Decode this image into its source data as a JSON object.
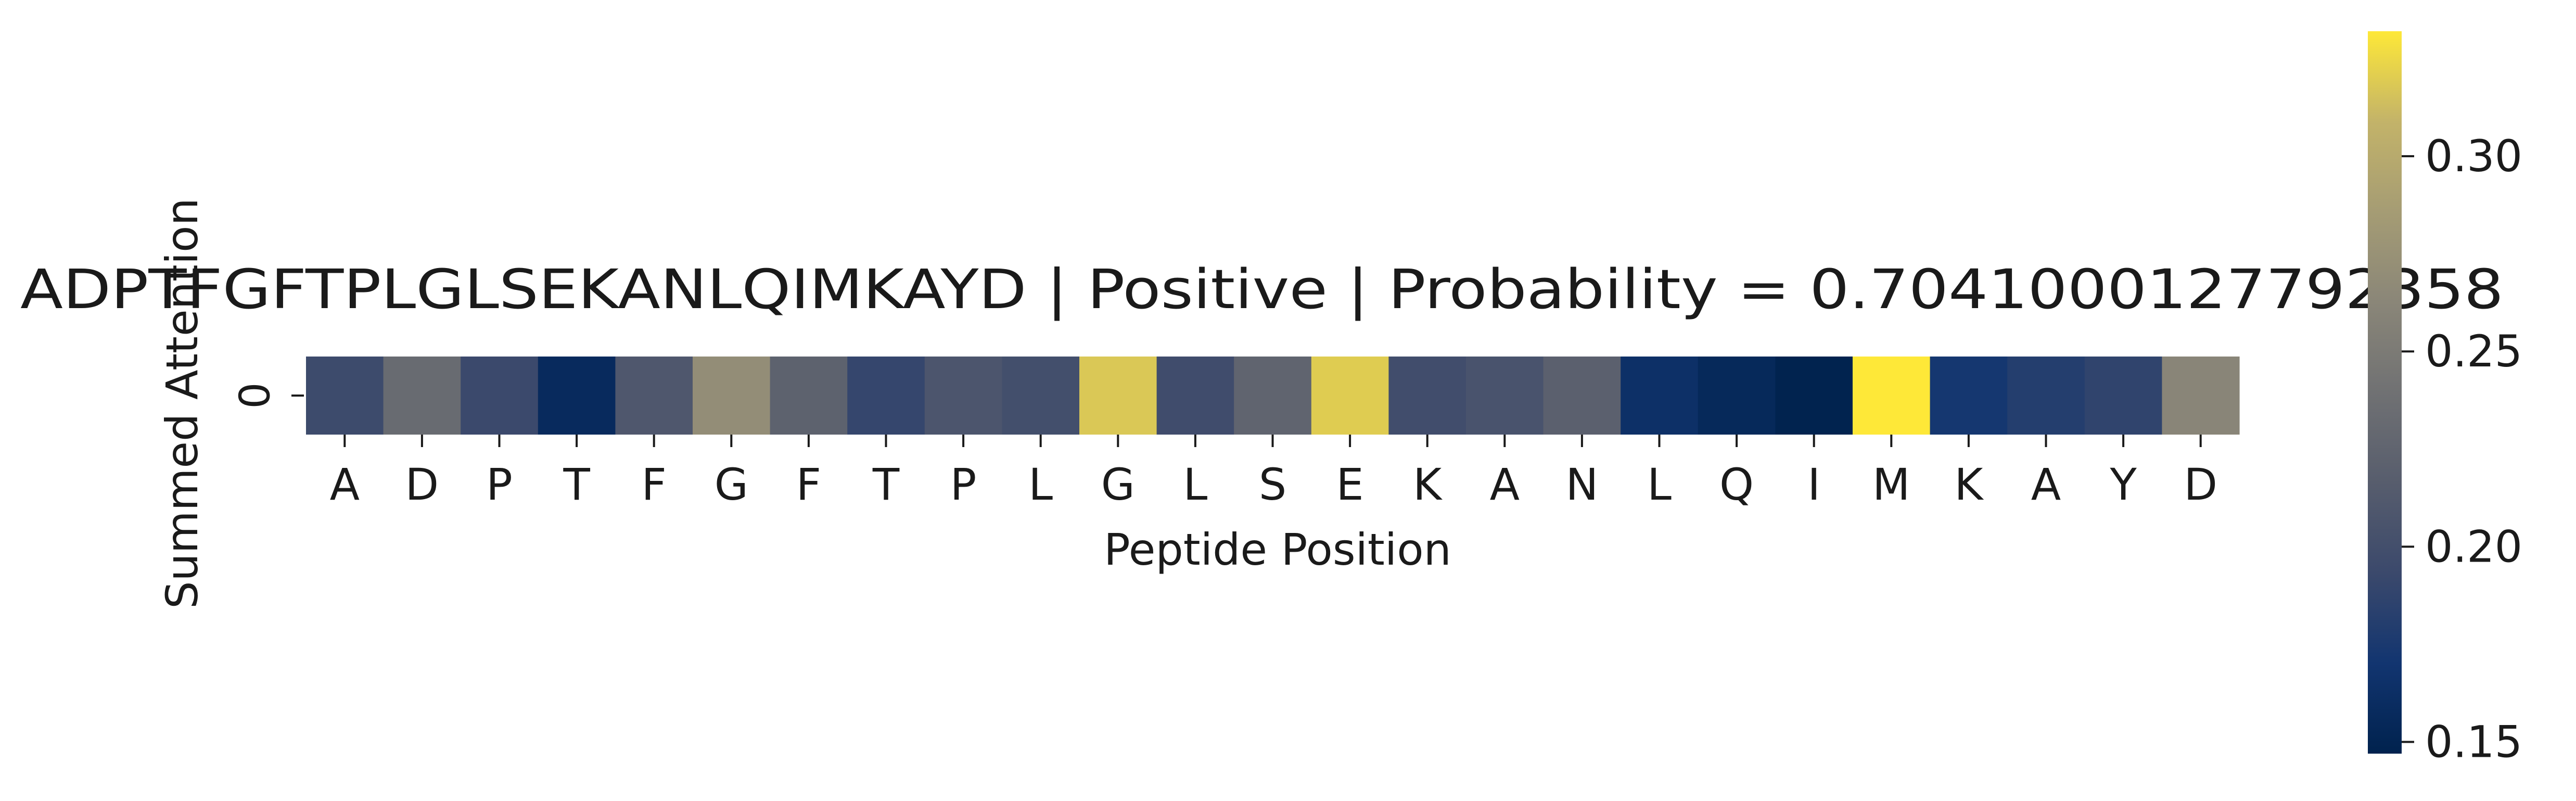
{
  "chart_data": {
    "type": "heatmap",
    "title": "ADPTFGFTPLGLSEKANLQIMKAYD | Positive | Probability = 0.7041000127792358",
    "xlabel": "Peptide Position",
    "ylabel": "Summed Attention",
    "row_labels": [
      "0"
    ],
    "categories": [
      "A",
      "D",
      "P",
      "T",
      "F",
      "G",
      "F",
      "T",
      "P",
      "L",
      "G",
      "L",
      "S",
      "E",
      "K",
      "A",
      "N",
      "L",
      "Q",
      "I",
      "M",
      "K",
      "A",
      "Y",
      "D"
    ],
    "values": [
      0.195,
      0.232,
      0.193,
      0.157,
      0.21,
      0.27,
      0.222,
      0.19,
      0.207,
      0.2,
      0.318,
      0.197,
      0.225,
      0.32,
      0.198,
      0.205,
      0.22,
      0.164,
      0.155,
      0.148,
      0.332,
      0.172,
      0.18,
      0.187,
      0.262
    ],
    "colorbar": {
      "colormap": "cividis",
      "vmin": 0.147,
      "vmax": 0.332,
      "ticks": [
        0.15,
        0.2,
        0.25,
        0.3
      ],
      "tick_labels": [
        "0.15",
        "0.20",
        "0.25",
        "0.30"
      ]
    }
  }
}
